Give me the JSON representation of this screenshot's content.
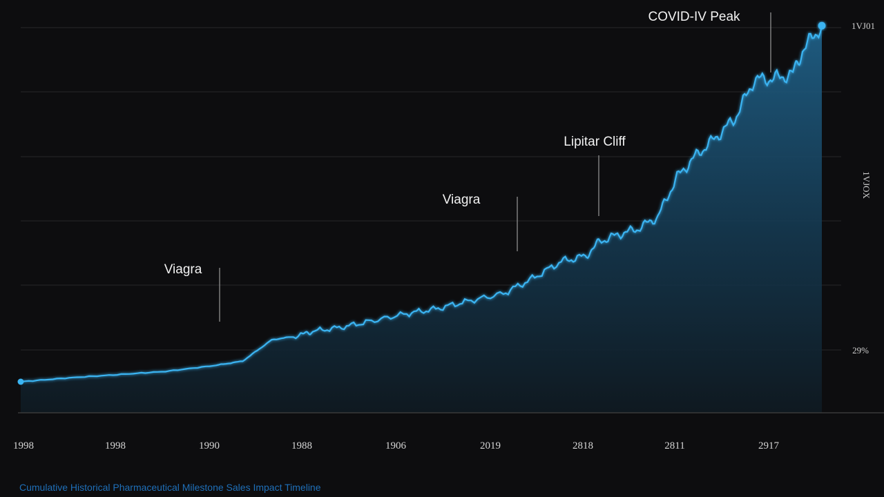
{
  "chart_data": {
    "type": "area",
    "title": "",
    "xlabel": "",
    "ylabel": "",
    "x_tick_labels": [
      "1998",
      "1998",
      "1990",
      "1988",
      "1906",
      "2019",
      "2818",
      "2811",
      "2917"
    ],
    "y_tick_labels": [
      "29%",
      "1VJOX",
      "1VJ01"
    ],
    "grid": true,
    "legend": "none",
    "line_color": "#3ab4f2",
    "fill_color": "#1f5f86",
    "series": [
      {
        "x": [
          0.0,
          0.5,
          1.0,
          1.5,
          2.0,
          2.3,
          2.6,
          2.9,
          3.0,
          3.3,
          3.6,
          4.0,
          4.3,
          4.6,
          5.0,
          5.3,
          5.6,
          5.85,
          6.0,
          6.2,
          6.4,
          6.6,
          6.8,
          7.0,
          7.2,
          7.4,
          7.6,
          7.8,
          8.0,
          8.1,
          8.3
        ],
        "y": [
          0.0,
          0.06,
          0.11,
          0.16,
          0.25,
          0.32,
          0.65,
          0.72,
          0.78,
          0.84,
          0.93,
          1.06,
          1.13,
          1.24,
          1.37,
          1.6,
          1.87,
          1.95,
          2.18,
          2.29,
          2.38,
          2.56,
          3.18,
          3.52,
          3.79,
          4.09,
          4.69,
          4.71,
          4.78,
          5.15,
          5.53
        ]
      }
    ],
    "ylim": [
      0,
      5.5
    ],
    "xlim": [
      0,
      8.3
    ],
    "annotations": [
      {
        "label": "Viagra",
        "x": 2.0,
        "y": 0.65
      },
      {
        "label": "Viagra",
        "x": 5.0,
        "y": 1.63
      },
      {
        "label": "Lipitar Cliff",
        "x": 5.85,
        "y": 1.95
      },
      {
        "label": "COVID-IV Peak",
        "x": 7.6,
        "y": 4.55
      }
    ],
    "end_point": {
      "x": 8.3,
      "y": 5.53
    }
  },
  "caption": "Cumulative Historical Pharmaceutical Milestone Sales Impact Timeline"
}
